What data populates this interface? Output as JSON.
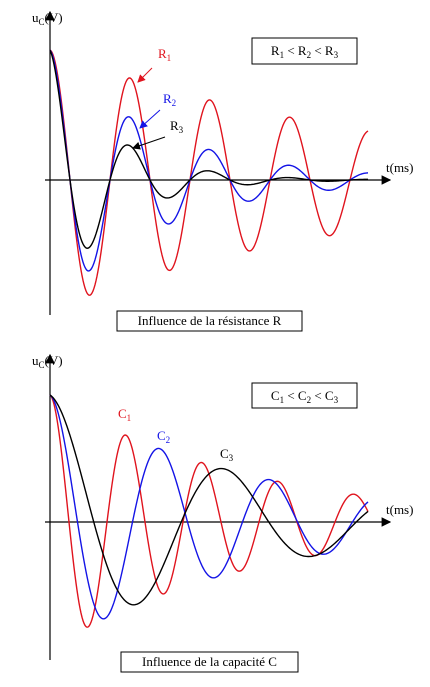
{
  "panels": [
    {
      "y_label": {
        "main": "u",
        "sub": "C",
        "unit": "(V)"
      },
      "x_label": "t(ms)",
      "relation": [
        "R",
        "1",
        " < ",
        "R",
        "2",
        " < ",
        "R",
        "3"
      ],
      "curve_labels": [
        {
          "main": "R",
          "sub": "1"
        },
        {
          "main": "R",
          "sub": "2"
        },
        {
          "main": "R",
          "sub": "3"
        }
      ],
      "caption": "Influence de la résistance R"
    },
    {
      "y_label": {
        "main": "u",
        "sub": "C",
        "unit": "(V)"
      },
      "x_label": "t(ms)",
      "relation": [
        "C",
        "1",
        " < ",
        "C",
        "2",
        " < ",
        "C",
        "3"
      ],
      "curve_labels": [
        {
          "main": "C",
          "sub": "1"
        },
        {
          "main": "C",
          "sub": "2"
        },
        {
          "main": "C",
          "sub": "3"
        }
      ],
      "caption": "Influence de la capacité C"
    }
  ]
}
